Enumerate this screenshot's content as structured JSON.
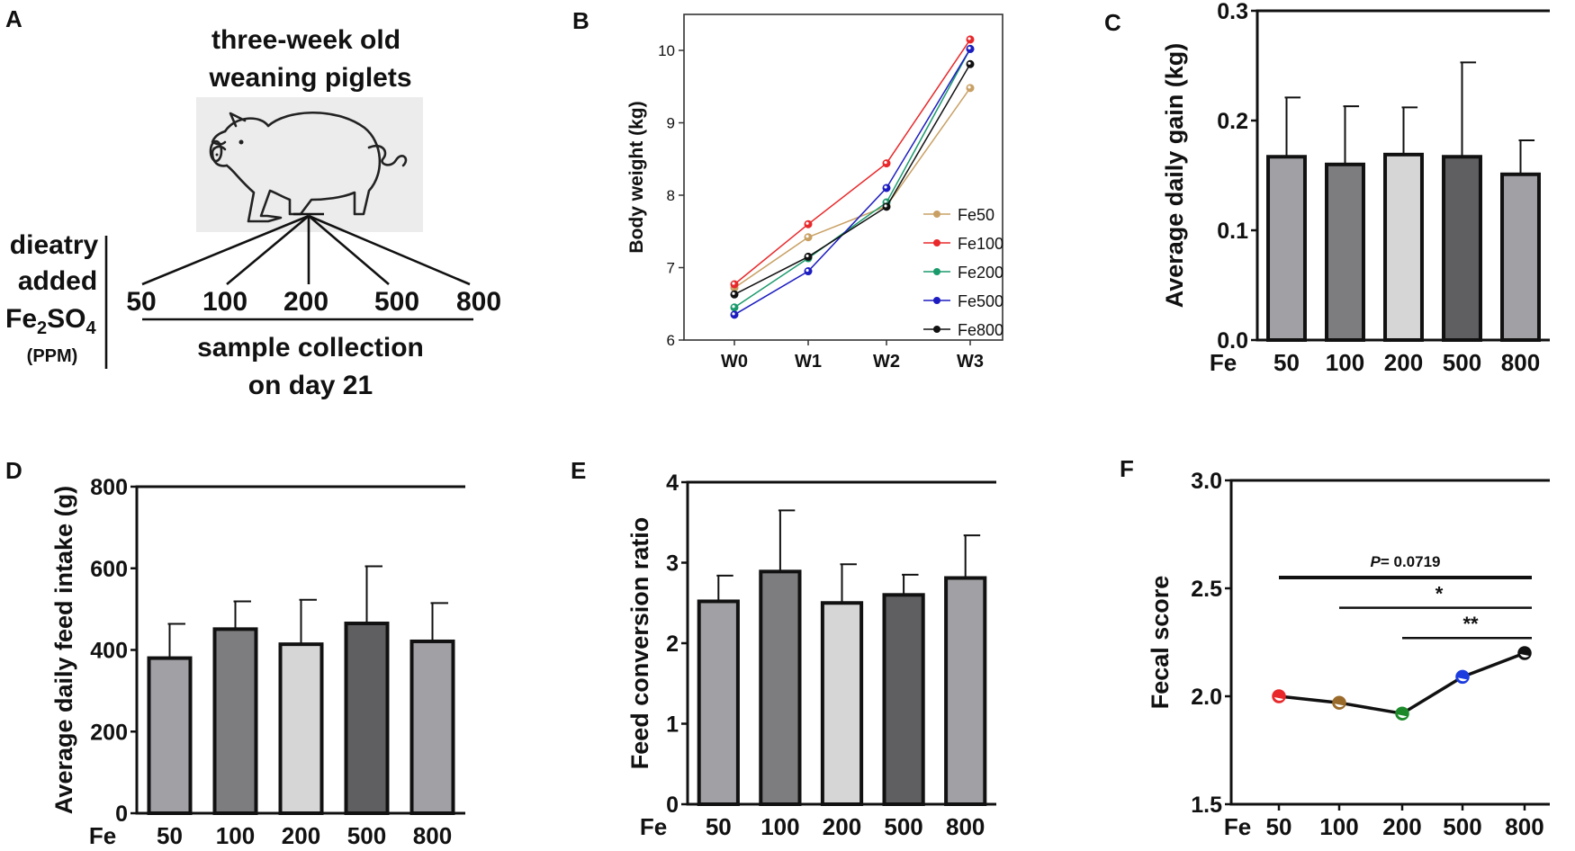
{
  "panel_letters": [
    "A",
    "B",
    "C",
    "D",
    "E",
    "F"
  ],
  "panel_a": {
    "title_line1": "three-week old",
    "title_line2": "weaning piglets",
    "side_label_line1": "dieatry",
    "side_label_line2": "added",
    "side_label_fe": "Fe",
    "side_label_sub2": "2",
    "side_label_so": "SO",
    "side_label_sub4": "4",
    "side_label_unit": "(PPM)",
    "doses": [
      "50",
      "100",
      "200",
      "500",
      "800"
    ],
    "collection_line1": "sample collection",
    "collection_line2": "on day 21",
    "pig_icon": "pig-icon"
  },
  "chart_data": [
    {
      "panel": "B",
      "type": "line",
      "title": "",
      "xlabel": "",
      "ylabel": "Body weight (kg)",
      "categories": [
        "W0",
        "W1",
        "W2",
        "W3"
      ],
      "ylim": [
        6,
        10.5
      ],
      "yticks": [
        6,
        7,
        8,
        9,
        10
      ],
      "legend": "right",
      "series": [
        {
          "name": "Fe50",
          "color": "#c8a064",
          "values": [
            6.72,
            7.42,
            7.85,
            9.48
          ]
        },
        {
          "name": "Fe100",
          "color": "#e8282a",
          "values": [
            6.77,
            7.6,
            8.44,
            10.15
          ]
        },
        {
          "name": "Fe200",
          "color": "#1a9a6c",
          "values": [
            6.45,
            7.13,
            7.9,
            10.02
          ]
        },
        {
          "name": "Fe500",
          "color": "#1c1cc0",
          "values": [
            6.35,
            6.95,
            8.1,
            10.02
          ]
        },
        {
          "name": "Fe800",
          "color": "#111111",
          "values": [
            6.63,
            7.15,
            7.84,
            9.81
          ]
        }
      ]
    },
    {
      "panel": "C",
      "type": "bar",
      "title": "",
      "xlabel": "",
      "ylabel": "Average daily gain (kg)",
      "x_prefix": "Fe",
      "categories": [
        "50",
        "100",
        "200",
        "500",
        "800"
      ],
      "values": [
        0.167,
        0.16,
        0.169,
        0.167,
        0.151
      ],
      "errors": [
        0.054,
        0.053,
        0.043,
        0.086,
        0.031
      ],
      "bar_colors": [
        "#a1a1a5",
        "#7d7d80",
        "#d6d6d6",
        "#5f5f61",
        "#a1a1a5"
      ],
      "ylim": [
        0,
        0.3
      ],
      "yticks": [
        0.0,
        0.1,
        0.2,
        0.3
      ],
      "ytick_labels": [
        "0.0",
        "0.1",
        "0.2",
        "0.3"
      ]
    },
    {
      "panel": "D",
      "type": "bar",
      "title": "",
      "xlabel": "",
      "ylabel": "Average daily feed intake (g)",
      "x_prefix": "Fe",
      "categories": [
        "50",
        "100",
        "200",
        "500",
        "800"
      ],
      "values": [
        380,
        451,
        414,
        465,
        421
      ],
      "errors": [
        84,
        68,
        109,
        140,
        94
      ],
      "bar_colors": [
        "#a1a1a5",
        "#7d7d80",
        "#d6d6d6",
        "#5f5f61",
        "#a1a1a5"
      ],
      "ylim": [
        0,
        800
      ],
      "yticks": [
        0,
        200,
        400,
        600,
        800
      ],
      "ytick_labels": [
        "0",
        "200",
        "400",
        "600",
        "800"
      ]
    },
    {
      "panel": "E",
      "type": "bar",
      "title": "",
      "xlabel": "",
      "ylabel": "Feed conversion ratio",
      "x_prefix": "Fe",
      "categories": [
        "50",
        "100",
        "200",
        "500",
        "800"
      ],
      "values": [
        2.52,
        2.89,
        2.5,
        2.6,
        2.81
      ],
      "errors": [
        0.32,
        0.76,
        0.48,
        0.25,
        0.53
      ],
      "bar_colors": [
        "#a1a1a5",
        "#7d7d80",
        "#d6d6d6",
        "#5f5f61",
        "#a1a1a5"
      ],
      "ylim": [
        0,
        4
      ],
      "yticks": [
        0,
        1,
        2,
        3,
        4
      ],
      "ytick_labels": [
        "0",
        "1",
        "2",
        "3",
        "4"
      ]
    },
    {
      "panel": "F",
      "type": "line",
      "title": "",
      "xlabel": "",
      "ylabel": "Fecal score",
      "x_prefix": "Fe",
      "categories": [
        "50",
        "100",
        "200",
        "500",
        "800"
      ],
      "values": [
        2.0,
        1.97,
        1.92,
        2.09,
        2.2
      ],
      "point_colors": [
        "#e8282a",
        "#9a6a2a",
        "#1d8a2a",
        "#1c3ce0",
        "#111111"
      ],
      "ylim": [
        1.5,
        3.0
      ],
      "yticks": [
        1.5,
        2.0,
        2.5,
        3.0
      ],
      "ytick_labels": [
        "1.5",
        "2.0",
        "2.5",
        "3.0"
      ],
      "annotations": [
        {
          "from": "50",
          "to": "800",
          "y": 2.55,
          "label_italic": "P",
          "label": "= 0.0719"
        },
        {
          "from": "100",
          "to": "800",
          "y": 2.41,
          "label": "*"
        },
        {
          "from": "200",
          "to": "800",
          "y": 2.27,
          "label": "**"
        }
      ]
    }
  ]
}
